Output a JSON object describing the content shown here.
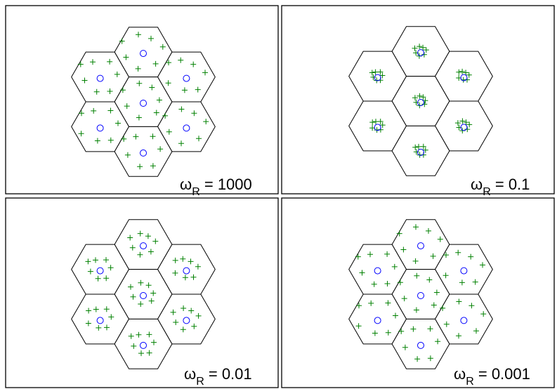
{
  "figure": {
    "colors": {
      "hexagon_edge": "#000000",
      "base_station": "#0000ff",
      "user": "#008000",
      "background": "#ffffff"
    },
    "markers": {
      "base_station": "circle",
      "user": "plus"
    },
    "panels": [
      {
        "omega_symbol": "ω",
        "subscript": "R",
        "value_text": " = 1000",
        "user_spread": "wide"
      },
      {
        "omega_symbol": "ω",
        "subscript": "R",
        "value_text": " = 0.1",
        "user_spread": "tight"
      },
      {
        "omega_symbol": "ω",
        "subscript": "R",
        "value_text": " = 0.01",
        "user_spread": "medium"
      },
      {
        "omega_symbol": "ω",
        "subscript": "R",
        "value_text": " = 0.001",
        "user_spread": "wide"
      }
    ]
  }
}
